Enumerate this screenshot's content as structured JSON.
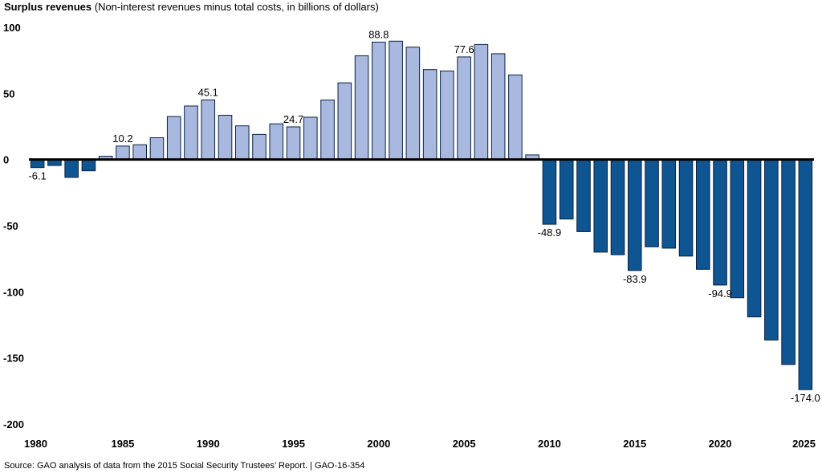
{
  "chart_data": {
    "type": "bar",
    "title": "Surplus revenues",
    "subtitle": "(Non-interest revenues minus total costs, in billions of dollars)",
    "source": "Source: GAO analysis of data from the 2015 Social Security Trustees’ Report.  |  GAO-16-354",
    "ylim": [
      -200,
      100
    ],
    "yticks": [
      100,
      50,
      0,
      -50,
      -100,
      -150,
      -200
    ],
    "xtick_labels": [
      "1980",
      "1985",
      "1990",
      "1995",
      "2000",
      "2005",
      "2010",
      "2015",
      "2020",
      "2025"
    ],
    "grid": false,
    "colors": {
      "positive": "#a9b8de",
      "negative": "#0e5592",
      "outline": "#0a2244"
    },
    "categories": [
      1980,
      1981,
      1982,
      1983,
      1984,
      1985,
      1986,
      1987,
      1988,
      1989,
      1990,
      1991,
      1992,
      1993,
      1994,
      1995,
      1996,
      1997,
      1998,
      1999,
      2000,
      2001,
      2002,
      2003,
      2004,
      2005,
      2006,
      2007,
      2008,
      2009,
      2010,
      2011,
      2012,
      2013,
      2014,
      2015,
      2016,
      2017,
      2018,
      2019,
      2020,
      2021,
      2022,
      2023,
      2024,
      2025
    ],
    "values": [
      -6.1,
      -4.5,
      -13.5,
      -8.5,
      2.5,
      10.2,
      11.2,
      16.5,
      32.5,
      40.5,
      45.1,
      33.5,
      25.5,
      19,
      27,
      24.7,
      32,
      45,
      58,
      78.5,
      88.8,
      89.5,
      85,
      68,
      67,
      77.6,
      87,
      80,
      64,
      3.5,
      -48.9,
      -45,
      -54.5,
      -70,
      -72,
      -83.9,
      -66,
      -67,
      -73,
      -83,
      -94.9,
      -104.5,
      -119,
      -136.5,
      -155,
      -174.0
    ],
    "data_labels": [
      {
        "year": 1980,
        "text": "-6.1"
      },
      {
        "year": 1985,
        "text": "10.2"
      },
      {
        "year": 1990,
        "text": "45.1"
      },
      {
        "year": 1995,
        "text": "24.7"
      },
      {
        "year": 2000,
        "text": "88.8"
      },
      {
        "year": 2005,
        "text": "77.6"
      },
      {
        "year": 2010,
        "text": "-48.9"
      },
      {
        "year": 2015,
        "text": "-83.9"
      },
      {
        "year": 2020,
        "text": "-94.9"
      },
      {
        "year": 2025,
        "text": "-174.0"
      }
    ]
  }
}
